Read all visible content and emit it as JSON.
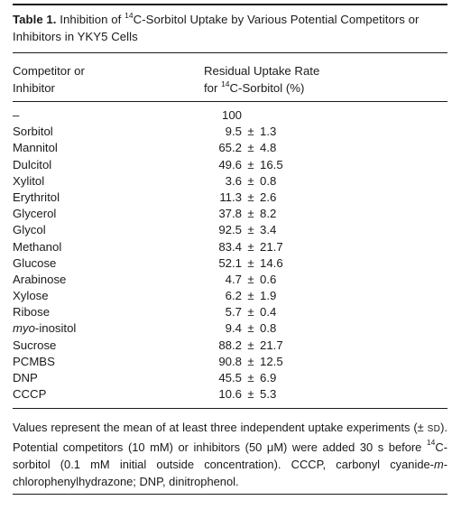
{
  "caption": {
    "label": "Table 1.",
    "title_pre": " Inhibition of ",
    "sup": "14",
    "title_post": "C-Sorbitol Uptake by Various Potential Competitors or Inhibitors in YKY5 Cells"
  },
  "header": {
    "col1_line1": "Competitor or",
    "col1_line2": "Inhibitor",
    "col2_line1": "Residual Uptake Rate",
    "col2_line2_pre": "for ",
    "col2_sup": "14",
    "col2_line2_post": "C-Sorbitol (%)"
  },
  "rows": [
    {
      "name": "–",
      "value": "100",
      "error": ""
    },
    {
      "name": "Sorbitol",
      "value": "9.5",
      "error": "1.3"
    },
    {
      "name": "Mannitol",
      "value": "65.2",
      "error": "4.8"
    },
    {
      "name": "Dulcitol",
      "value": "49.6",
      "error": "16.5"
    },
    {
      "name": "Xylitol",
      "value": "3.6",
      "error": "0.8"
    },
    {
      "name": "Erythritol",
      "value": "11.3",
      "error": "2.6"
    },
    {
      "name": "Glycerol",
      "value": "37.8",
      "error": "8.2"
    },
    {
      "name": "Glycol",
      "value": "92.5",
      "error": "3.4"
    },
    {
      "name": "Methanol",
      "value": "83.4",
      "error": "21.7"
    },
    {
      "name": "Glucose",
      "value": "52.1",
      "error": "14.6"
    },
    {
      "name": "Arabinose",
      "value": "4.7",
      "error": "0.6"
    },
    {
      "name": "Xylose",
      "value": "6.2",
      "error": "1.9"
    },
    {
      "name": "Ribose",
      "value": "5.7",
      "error": "0.4"
    },
    {
      "name": "myo-inositol",
      "value": "9.4",
      "error": "0.8"
    },
    {
      "name": "Sucrose",
      "value": "88.2",
      "error": "21.7"
    },
    {
      "name": "PCMBS",
      "value": "90.8",
      "error": "12.5"
    },
    {
      "name": "DNP",
      "value": "45.5",
      "error": "6.9"
    },
    {
      "name": "CCCP",
      "value": "10.6",
      "error": "5.3"
    }
  ],
  "pm_symbol": "±",
  "footnote": {
    "p1": "Values represent the mean of at least three independent uptake experiments (± ",
    "sd": "SD",
    "p2": "). Potential competitors (10 mM) or inhibitors (50 μM) were added 30 s before ",
    "sup": "14",
    "p3": "C-sorbitol (0.1 mM initial outside concentration). CCCP, carbonyl cyanide-",
    "italic": "m",
    "p4": "-chlorophenylhydrazone; DNP, dinitrophenol."
  }
}
